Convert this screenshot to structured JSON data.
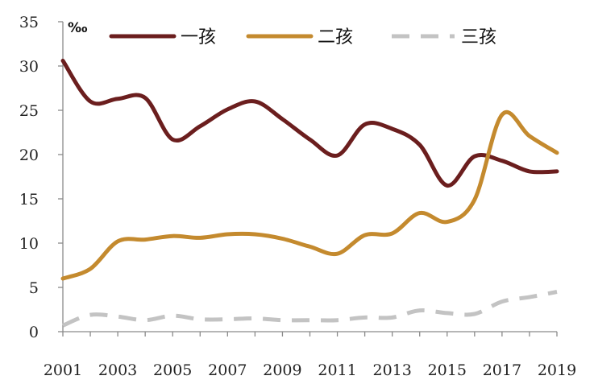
{
  "chart_data": {
    "type": "line",
    "unit_label": "‰",
    "x": [
      2001,
      2002,
      2003,
      2004,
      2005,
      2006,
      2007,
      2008,
      2009,
      2010,
      2011,
      2012,
      2013,
      2014,
      2015,
      2016,
      2017,
      2018,
      2019
    ],
    "x_tick_labels": [
      "2001",
      "2003",
      "2005",
      "2007",
      "2009",
      "2011",
      "2013",
      "2015",
      "2017",
      "2019"
    ],
    "y_ticks": [
      0,
      5,
      10,
      15,
      20,
      25,
      30,
      35
    ],
    "ylim": [
      0,
      35
    ],
    "grid": false,
    "legend_position": "top",
    "series": [
      {
        "name": "一孩",
        "color": "#6b1e1e",
        "dash": "solid",
        "values": [
          30.6,
          26.0,
          26.3,
          26.4,
          21.7,
          23.2,
          25.1,
          26.0,
          24.0,
          21.7,
          19.9,
          23.4,
          22.9,
          21.1,
          16.5,
          19.8,
          19.3,
          18.1,
          18.1
        ]
      },
      {
        "name": "二孩",
        "color": "#c48a2e",
        "dash": "solid",
        "values": [
          6.0,
          7.1,
          10.2,
          10.4,
          10.8,
          10.6,
          11.0,
          11.0,
          10.5,
          9.6,
          8.8,
          10.9,
          11.1,
          13.4,
          12.4,
          14.9,
          24.5,
          22.1,
          20.2
        ]
      },
      {
        "name": "三孩",
        "color": "#c3c3c3",
        "dash": "dashed",
        "values": [
          0.7,
          1.9,
          1.7,
          1.3,
          1.8,
          1.4,
          1.4,
          1.5,
          1.3,
          1.3,
          1.3,
          1.6,
          1.6,
          2.4,
          2.1,
          2.0,
          3.4,
          3.9,
          4.5
        ]
      }
    ]
  }
}
